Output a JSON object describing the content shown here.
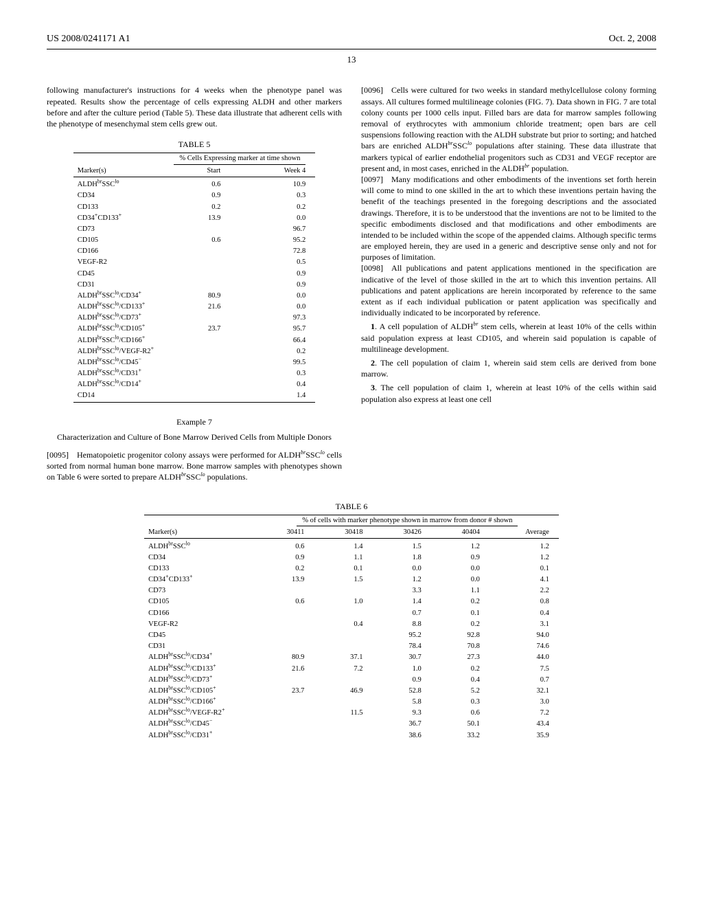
{
  "header": {
    "pubno": "US 2008/0241171 A1",
    "date": "Oct. 2, 2008"
  },
  "pageno": "13",
  "leftTop": "following manufacturer's instructions for 4 weeks when the phenotype panel was repeated. Results show the percentage of cells expressing ALDH and other markers before and after the culture period (Table 5). These data illustrate that adherent cells with the phenotype of mesenchymal stem cells grew out.",
  "table5": {
    "title": "TABLE 5",
    "groupHeader": "% Cells Expressing marker at time shown",
    "col1": "Marker(s)",
    "col2": "Start",
    "col3": "Week 4",
    "rows": [
      [
        "ALDH<sup>br</sup>SSC<sup>lo</sup>",
        "0.6",
        "10.9"
      ],
      [
        "CD34",
        "0.9",
        "0.3"
      ],
      [
        "CD133",
        "0.2",
        "0.2"
      ],
      [
        "CD34<sup>+</sup>CD133<sup>+</sup>",
        "13.9",
        "0.0"
      ],
      [
        "CD73",
        "",
        "96.7"
      ],
      [
        "CD105",
        "0.6",
        "95.2"
      ],
      [
        "CD166",
        "",
        "72.8"
      ],
      [
        "VEGF-R2",
        "",
        "0.5"
      ],
      [
        "CD45",
        "",
        "0.9"
      ],
      [
        "CD31",
        "",
        "0.9"
      ],
      [
        "ALDH<sup>br</sup>SSC<sup>lo</sup>/CD34<sup>+</sup>",
        "80.9",
        "0.0"
      ],
      [
        "ALDH<sup>br</sup>SSC<sup>lo</sup>/CD133<sup>+</sup>",
        "21.6",
        "0.0"
      ],
      [
        "ALDH<sup>br</sup>SSC<sup>lo</sup>/CD73<sup>+</sup>",
        "",
        "97.3"
      ],
      [
        "ALDH<sup>br</sup>SSC<sup>lo</sup>/CD105<sup>+</sup>",
        "23.7",
        "95.7"
      ],
      [
        "ALDH<sup>br</sup>SSC<sup>lo</sup>/CD166<sup>+</sup>",
        "",
        "66.4"
      ],
      [
        "ALDH<sup>br</sup>SSC<sup>lo</sup>/VEGF-R2<sup>+</sup>",
        "",
        "0.2"
      ],
      [
        "ALDH<sup>br</sup>SSC<sup>lo</sup>/CD45<sup>−</sup>",
        "",
        "99.5"
      ],
      [
        "ALDH<sup>br</sup>SSC<sup>lo</sup>/CD31<sup>+</sup>",
        "",
        "0.3"
      ],
      [
        "ALDH<sup>br</sup>SSC<sup>lo</sup>/CD14<sup>+</sup>",
        "",
        "0.4"
      ],
      [
        "CD14",
        "",
        "1.4"
      ]
    ]
  },
  "example7": {
    "title": "Example 7",
    "sub": "Characterization and Culture of Bone Marrow Derived Cells from Multiple Donors",
    "para95": "[0095] Hematopoietic progenitor colony assays were performed for ALDH<sup><i>br</i></sup>SSC<sup><i>lo</i></sup> cells sorted from normal human bone marrow. Bone marrow samples with phenotypes shown on Table 6 were sorted to prepare ALDH<sup><i>br</i></sup>SSC<sup><i>lo</i></sup> populations."
  },
  "right": {
    "para96": "[0096] Cells were cultured for two weeks in standard methylcellulose colony forming assays. All cultures formed multilineage colonies (FIG. 7). Data shown in FIG. 7 are total colony counts per 1000 cells input. Filled bars are data for marrow samples following removal of erythrocytes with ammonium chloride treatment; open bars are cell suspensions following reaction with the ALDH substrate but prior to sorting; and hatched bars are enriched ALDH<sup><i>br</i></sup>SSC<sup><i>lo</i></sup> populations after staining. These data illustrate that markers typical of earlier endothelial progenitors such as CD31 and VEGF receptor are present and, in most cases, enriched in the ALDH<sup><i>br</i></sup> population.",
    "para97": "[0097] Many modifications and other embodiments of the inventions set forth herein will come to mind to one skilled in the art to which these inventions pertain having the benefit of the teachings presented in the foregoing descriptions and the associated drawings. Therefore, it is to be understood that the inventions are not to be limited to the specific embodiments disclosed and that modifications and other embodiments are intended to be included within the scope of the appended claims. Although specific terms are employed herein, they are used in a generic and descriptive sense only and not for purposes of limitation.",
    "para98": "[0098] All publications and patent applications mentioned in the specification are indicative of the level of those skilled in the art to which this invention pertains. All publications and patent applications are herein incorporated by reference to the same extent as if each individual publication or patent application was specifically and individually indicated to be incorporated by reference.",
    "claim1": "1. A cell population of ALDH<sup><i>br</i></sup> stem cells, wherein at least 10% of the cells within said population express at least CD105, and wherein said population is capable of multilineage development.",
    "claim2": "2. The cell population of claim 1, wherein said stem cells are derived from bone marrow.",
    "claim3": "3. The cell population of claim 1, wherein at least 10% of the cells within said population also express at least one cell"
  },
  "table6": {
    "title": "TABLE 6",
    "groupHeader": "% of cells with marker phenotype shown in marrow from donor # shown",
    "cols": [
      "Marker(s)",
      "30411",
      "30418",
      "30426",
      "40404",
      "Average"
    ],
    "rows": [
      [
        "ALDH<sup>br</sup>SSC<sup>lo</sup>",
        "0.6",
        "1.4",
        "1.5",
        "1.2",
        "1.2"
      ],
      [
        "CD34",
        "0.9",
        "1.1",
        "1.8",
        "0.9",
        "1.2"
      ],
      [
        "CD133",
        "0.2",
        "0.1",
        "0.0",
        "0.0",
        "0.1"
      ],
      [
        "CD34<sup>+</sup>CD133<sup>+</sup>",
        "13.9",
        "1.5",
        "1.2",
        "0.0",
        "4.1"
      ],
      [
        "CD73",
        "",
        "",
        "3.3",
        "1.1",
        "2.2"
      ],
      [
        "CD105",
        "0.6",
        "1.0",
        "1.4",
        "0.2",
        "0.8"
      ],
      [
        "CD166",
        "",
        "",
        "0.7",
        "0.1",
        "0.4"
      ],
      [
        "VEGF-R2",
        "",
        "0.4",
        "8.8",
        "0.2",
        "3.1"
      ],
      [
        "CD45",
        "",
        "",
        "95.2",
        "92.8",
        "94.0"
      ],
      [
        "CD31",
        "",
        "",
        "78.4",
        "70.8",
        "74.6"
      ],
      [
        "ALDH<sup>br</sup>SSC<sup>lo</sup>/CD34<sup>+</sup>",
        "80.9",
        "37.1",
        "30.7",
        "27.3",
        "44.0"
      ],
      [
        "ALDH<sup>br</sup>SSC<sup>lo</sup>/CD133<sup>+</sup>",
        "21.6",
        "7.2",
        "1.0",
        "0.2",
        "7.5"
      ],
      [
        "ALDH<sup>br</sup>SSC<sup>lo</sup>/CD73<sup>+</sup>",
        "",
        "",
        "0.9",
        "0.4",
        "0.7"
      ],
      [
        "ALDH<sup>br</sup>SSC<sup>lo</sup>/CD105<sup>+</sup>",
        "23.7",
        "46.9",
        "52.8",
        "5.2",
        "32.1"
      ],
      [
        "ALDH<sup>br</sup>SSC<sup>lo</sup>/CD166<sup>+</sup>",
        "",
        "",
        "5.8",
        "0.3",
        "3.0"
      ],
      [
        "ALDH<sup>br</sup>SSC<sup>lo</sup>/VEGF-R2<sup>+</sup>",
        "",
        "11.5",
        "9.3",
        "0.6",
        "7.2"
      ],
      [
        "ALDH<sup>br</sup>SSC<sup>lo</sup>/CD45<sup>−</sup>",
        "",
        "",
        "36.7",
        "50.1",
        "43.4"
      ],
      [
        "ALDH<sup>br</sup>SSC<sup>lo</sup>/CD31<sup>+</sup>",
        "",
        "",
        "38.6",
        "33.2",
        "35.9"
      ]
    ]
  }
}
